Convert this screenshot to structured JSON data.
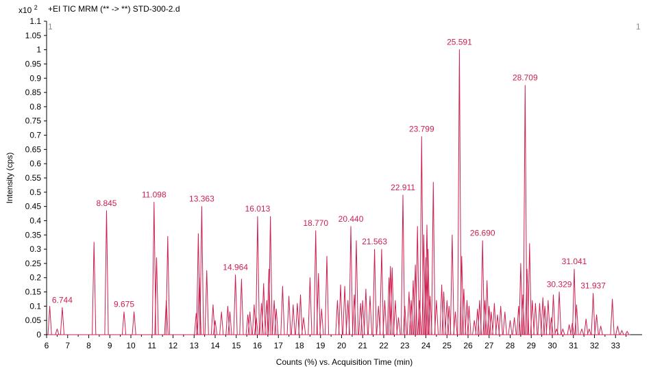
{
  "header": {
    "scale_base": "x10",
    "scale_exp": "2",
    "title": "+EI TIC MRM (** -> **) STD-300-2.d"
  },
  "corner_left": "1",
  "corner_right": "1",
  "colors": {
    "trace": "#cc1f4f",
    "text": "#000000",
    "label": "#cc1f4f"
  },
  "chart_data": {
    "type": "line",
    "xlabel": "Counts (%) vs. Acquisition Time (min)",
    "ylabel": "Intensity (cps)",
    "xlim": [
      6.0,
      33.7
    ],
    "ylim": [
      0,
      1.1
    ],
    "x_ticks": [
      "6",
      "7",
      "8",
      "9",
      "10",
      "11",
      "12",
      "13",
      "14",
      "15",
      "16",
      "17",
      "18",
      "19",
      "20",
      "21",
      "22",
      "23",
      "24",
      "25",
      "26",
      "27",
      "28",
      "29",
      "30",
      "31",
      "32",
      "33"
    ],
    "y_ticks": [
      "0",
      "0.05",
      "0.1",
      "0.15",
      "0.2",
      "0.25",
      "0.3",
      "0.35",
      "0.4",
      "0.45",
      "0.5",
      "0.55",
      "0.6",
      "0.65",
      "0.7",
      "0.75",
      "0.8",
      "0.85",
      "0.9",
      "0.95",
      "1",
      "1.05",
      "1.1"
    ],
    "peaks": [
      [
        6.15,
        0.1
      ],
      [
        6.5,
        0.02
      ],
      [
        6.744,
        0.095
      ],
      [
        8.25,
        0.325
      ],
      [
        8.845,
        0.435
      ],
      [
        9.675,
        0.08
      ],
      [
        10.15,
        0.08
      ],
      [
        11.098,
        0.465
      ],
      [
        11.22,
        0.27
      ],
      [
        11.75,
        0.345
      ],
      [
        11.68,
        0.12
      ],
      [
        13.1,
        0.075
      ],
      [
        13.2,
        0.355
      ],
      [
        13.25,
        0.2
      ],
      [
        13.363,
        0.45
      ],
      [
        13.6,
        0.225
      ],
      [
        13.9,
        0.105
      ],
      [
        14.0,
        0.05
      ],
      [
        14.3,
        0.08
      ],
      [
        14.6,
        0.1
      ],
      [
        14.7,
        0.08
      ],
      [
        14.964,
        0.21
      ],
      [
        15.25,
        0.195
      ],
      [
        15.55,
        0.07
      ],
      [
        15.65,
        0.08
      ],
      [
        15.85,
        0.105
      ],
      [
        15.95,
        0.06
      ],
      [
        16.013,
        0.415
      ],
      [
        16.2,
        0.11
      ],
      [
        16.3,
        0.18
      ],
      [
        16.45,
        0.12
      ],
      [
        16.55,
        0.23
      ],
      [
        16.62,
        0.415
      ],
      [
        16.8,
        0.12
      ],
      [
        16.9,
        0.09
      ],
      [
        17.2,
        0.17
      ],
      [
        17.5,
        0.135
      ],
      [
        17.7,
        0.105
      ],
      [
        17.9,
        0.11
      ],
      [
        18.05,
        0.14
      ],
      [
        18.2,
        0.06
      ],
      [
        18.5,
        0.2
      ],
      [
        18.77,
        0.365
      ],
      [
        18.9,
        0.215
      ],
      [
        19.05,
        0.09
      ],
      [
        19.3,
        0.275
      ],
      [
        19.8,
        0.12
      ],
      [
        19.95,
        0.175
      ],
      [
        20.15,
        0.17
      ],
      [
        20.3,
        0.12
      ],
      [
        20.44,
        0.38
      ],
      [
        20.6,
        0.14
      ],
      [
        20.7,
        0.33
      ],
      [
        20.9,
        0.11
      ],
      [
        21.0,
        0.12
      ],
      [
        21.15,
        0.16
      ],
      [
        21.35,
        0.135
      ],
      [
        21.563,
        0.3
      ],
      [
        21.75,
        0.1
      ],
      [
        21.9,
        0.3
      ],
      [
        22.05,
        0.12
      ],
      [
        22.25,
        0.2
      ],
      [
        22.32,
        0.24
      ],
      [
        22.4,
        0.235
      ],
      [
        22.55,
        0.12
      ],
      [
        22.7,
        0.06
      ],
      [
        22.911,
        0.49
      ],
      [
        23.0,
        0.1
      ],
      [
        23.2,
        0.15
      ],
      [
        23.3,
        0.12
      ],
      [
        23.4,
        0.19
      ],
      [
        23.5,
        0.245
      ],
      [
        23.6,
        0.38
      ],
      [
        23.7,
        0.12
      ],
      [
        23.799,
        0.695
      ],
      [
        23.9,
        0.35
      ],
      [
        24.0,
        0.27
      ],
      [
        24.05,
        0.385
      ],
      [
        24.1,
        0.3
      ],
      [
        24.2,
        0.135
      ],
      [
        24.35,
        0.535
      ],
      [
        24.5,
        0.12
      ],
      [
        24.75,
        0.175
      ],
      [
        24.85,
        0.15
      ],
      [
        25.0,
        0.12
      ],
      [
        25.1,
        0.1
      ],
      [
        25.25,
        0.35
      ],
      [
        25.4,
        0.08
      ],
      [
        25.591,
        1.0
      ],
      [
        25.7,
        0.275
      ],
      [
        25.8,
        0.16
      ],
      [
        25.95,
        0.12
      ],
      [
        26.05,
        0.1
      ],
      [
        26.3,
        0.05
      ],
      [
        26.45,
        0.09
      ],
      [
        26.55,
        0.12
      ],
      [
        26.69,
        0.33
      ],
      [
        26.8,
        0.12
      ],
      [
        26.9,
        0.19
      ],
      [
        27.0,
        0.1
      ],
      [
        27.1,
        0.08
      ],
      [
        27.25,
        0.11
      ],
      [
        27.4,
        0.07
      ],
      [
        27.55,
        0.1
      ],
      [
        27.75,
        0.08
      ],
      [
        28.0,
        0.05
      ],
      [
        28.2,
        0.06
      ],
      [
        28.4,
        0.1
      ],
      [
        28.5,
        0.25
      ],
      [
        28.6,
        0.14
      ],
      [
        28.709,
        0.875
      ],
      [
        28.8,
        0.23
      ],
      [
        28.92,
        0.32
      ],
      [
        29.05,
        0.12
      ],
      [
        29.2,
        0.11
      ],
      [
        29.4,
        0.11
      ],
      [
        29.55,
        0.13
      ],
      [
        29.65,
        0.1
      ],
      [
        29.8,
        0.12
      ],
      [
        29.95,
        0.06
      ],
      [
        30.05,
        0.14
      ],
      [
        30.2,
        0.02
      ],
      [
        30.329,
        0.15
      ],
      [
        30.5,
        0.02
      ],
      [
        30.8,
        0.035
      ],
      [
        30.95,
        0.04
      ],
      [
        31.041,
        0.23
      ],
      [
        31.15,
        0.105
      ],
      [
        31.4,
        0.02
      ],
      [
        31.6,
        0.055
      ],
      [
        31.75,
        0.02
      ],
      [
        31.937,
        0.145
      ],
      [
        32.1,
        0.07
      ],
      [
        32.3,
        0.03
      ],
      [
        32.85,
        0.125
      ],
      [
        33.1,
        0.03
      ],
      [
        33.3,
        0.015
      ],
      [
        33.55,
        0.012
      ]
    ],
    "labels": [
      {
        "x": 6.744,
        "y": 0.095,
        "text": "6.744"
      },
      {
        "x": 8.845,
        "y": 0.435,
        "text": "8.845"
      },
      {
        "x": 9.675,
        "y": 0.08,
        "text": "9.675"
      },
      {
        "x": 11.098,
        "y": 0.465,
        "text": "11.098"
      },
      {
        "x": 13.363,
        "y": 0.45,
        "text": "13.363"
      },
      {
        "x": 14.964,
        "y": 0.21,
        "text": "14.964"
      },
      {
        "x": 16.013,
        "y": 0.415,
        "text": "16.013"
      },
      {
        "x": 18.77,
        "y": 0.365,
        "text": "18.770"
      },
      {
        "x": 20.44,
        "y": 0.38,
        "text": "20.440"
      },
      {
        "x": 21.563,
        "y": 0.3,
        "text": "21.563"
      },
      {
        "x": 22.911,
        "y": 0.49,
        "text": "22.911"
      },
      {
        "x": 23.799,
        "y": 0.695,
        "text": "23.799"
      },
      {
        "x": 25.591,
        "y": 1.0,
        "text": "25.591"
      },
      {
        "x": 26.69,
        "y": 0.33,
        "text": "26.690"
      },
      {
        "x": 28.709,
        "y": 0.875,
        "text": "28.709"
      },
      {
        "x": 30.329,
        "y": 0.15,
        "text": "30.329"
      },
      {
        "x": 31.041,
        "y": 0.23,
        "text": "31.041"
      },
      {
        "x": 31.937,
        "y": 0.145,
        "text": "31.937"
      }
    ]
  }
}
